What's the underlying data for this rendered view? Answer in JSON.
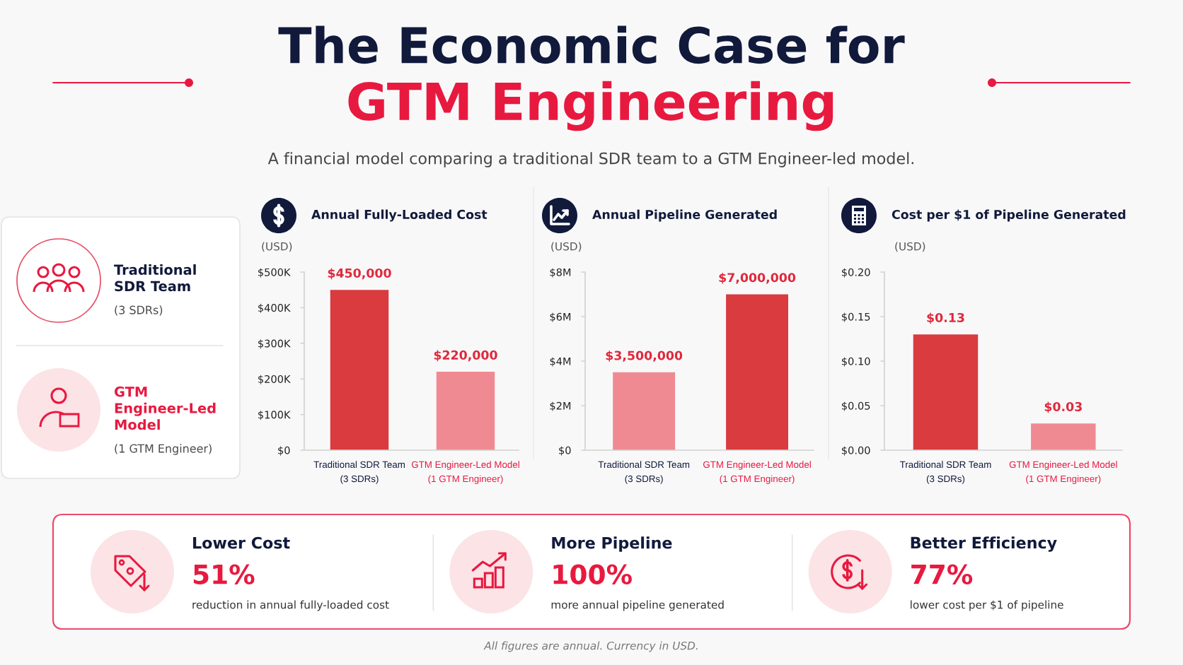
{
  "chart_data": [
    {
      "type": "other",
      "title": "The Economic Case for\nGTM Engineering",
      "subtitle": "A financial model comparing a traditional SDR team to a GTM Engineer-led model.",
      "annotations": [
        "Traditional\nSDR Team",
        "(3 SDRs)",
        "GTM\nEngineer-Led\nModel",
        "(1 GTM Engineer)"
      ]
    },
    {
      "type": "bar",
      "title": "Annual Fully-Loaded Cost",
      "ylabel": "(USD)",
      "categories": [
        "Traditional SDR Team\n(3 SDRs)",
        "GTM Engineer-Led Model\n(1 GTM Engineer)"
      ],
      "values": [
        450000,
        220000
      ],
      "colors": [
        "#d93b3f",
        "#f08a92"
      ],
      "value_labels": [
        "$450,000",
        "$220,000"
      ],
      "ylim": [
        0,
        500000
      ],
      "yticks": [
        {
          "value": 0,
          "label": "$0"
        },
        {
          "value": 100000,
          "label": "$100K"
        },
        {
          "value": 200000,
          "label": "$200K"
        },
        {
          "value": 300000,
          "label": "$300K"
        },
        {
          "value": 400000,
          "label": "$400K"
        },
        {
          "value": 500000,
          "label": "$500K"
        }
      ]
    },
    {
      "type": "bar",
      "title": "Annual Pipeline Generated",
      "ylabel": "(USD)",
      "categories": [
        "Traditional SDR Team\n(3 SDRs)",
        "GTM Engineer-Led Model\n(1 GTM Engineer)"
      ],
      "values": [
        3500000,
        7000000
      ],
      "colors": [
        "#f08a92",
        "#d93b3f"
      ],
      "value_labels": [
        "$3,500,000",
        "$7,000,000"
      ],
      "ylim": [
        0,
        8000000
      ],
      "yticks": [
        {
          "value": 0,
          "label": "$0"
        },
        {
          "value": 2000000,
          "label": "$2M"
        },
        {
          "value": 4000000,
          "label": "$4M"
        },
        {
          "value": 6000000,
          "label": "$6M"
        },
        {
          "value": 8000000,
          "label": "$8M"
        }
      ]
    },
    {
      "type": "bar",
      "title": "Cost per $1 of Pipeline Generated",
      "ylabel": "(USD)",
      "categories": [
        "Traditional SDR Team\n(3 SDRs)",
        "GTM Engineer-Led Model\n(1 GTM Engineer)"
      ],
      "values": [
        0.13,
        0.03
      ],
      "colors": [
        "#d93b3f",
        "#f08a92"
      ],
      "value_labels": [
        "$0.13",
        "$0.03"
      ],
      "ylim": [
        0,
        0.2
      ],
      "yticks": [
        {
          "value": 0,
          "label": "$0.00"
        },
        {
          "value": 0.05,
          "label": "$0.05"
        },
        {
          "value": 0.1,
          "label": "$0.10"
        },
        {
          "value": 0.15,
          "label": "$0.15"
        },
        {
          "value": 0.2,
          "label": "$0.20"
        }
      ]
    },
    {
      "type": "other",
      "annotations": [
        "Lower Cost",
        "51%",
        "reduction in annual fully-loaded cost",
        "More Pipeline",
        "100%",
        "more annual pipeline generated",
        "Better Efficiency",
        "77%",
        "lower cost per $1 of pipeline",
        "All figures are annual. Currency in USD."
      ]
    }
  ]
}
